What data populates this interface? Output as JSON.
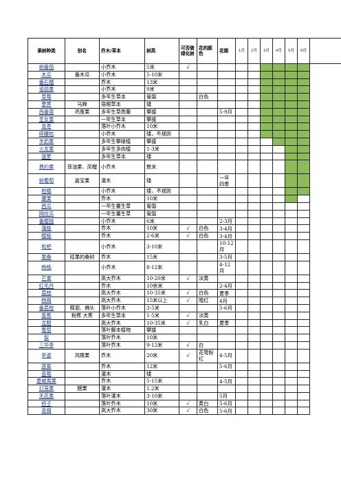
{
  "header": {
    "corner_label": "果",
    "col_fruit": "果树种类",
    "col_alias": "别名",
    "col_type": "乔木/草本",
    "col_height": "树高",
    "col_evergreen": "可否做绿化树",
    "col_flower_color": "花的颜色",
    "col_bloom": "花期",
    "months": [
      "1月",
      "2月",
      "3月",
      "4月",
      "5月",
      "6月"
    ]
  },
  "rows": [
    {
      "fruit": "树番茄",
      "alias": "",
      "type": "小乔木",
      "height": "5米",
      "green": "√",
      "color": "",
      "bloom": "",
      "g": [
        0,
        0,
        1,
        1,
        1,
        1
      ]
    },
    {
      "fruit": "木瓜",
      "alias": "番木瓜",
      "type": "小乔木",
      "height": "5-10米",
      "green": "",
      "color": "",
      "bloom": "",
      "g": [
        0,
        0,
        1,
        1,
        1,
        1
      ]
    },
    {
      "fruit": "番石榴",
      "alias": "",
      "type": "乔木",
      "height": "13米",
      "green": "",
      "color": "",
      "bloom": "",
      "g": [
        0,
        0,
        1,
        1,
        1,
        1
      ]
    },
    {
      "fruit": "诺丽果",
      "alias": "",
      "type": "小乔木",
      "height": "9米",
      "green": "",
      "color": "",
      "bloom": "",
      "g": [
        0,
        0,
        1,
        1,
        1,
        1
      ]
    },
    {
      "fruit": "草莓",
      "alias": "",
      "type": "多年生草本",
      "height": "匍匐",
      "green": "",
      "color": "白色",
      "bloom": "",
      "g": [
        0,
        0,
        1,
        1,
        1,
        1
      ]
    },
    {
      "fruit": "荸荠",
      "alias": "马蹄",
      "type": "宿根草本",
      "height": "矮",
      "green": "",
      "color": "",
      "bloom": "",
      "g": [
        0,
        0,
        1,
        1,
        1,
        1
      ]
    },
    {
      "fruit": "西番莲",
      "alias": "鸡蛋果",
      "type": "多年生草质藤",
      "height": "攀援",
      "green": "",
      "color": "",
      "bloom": "5-9月",
      "g": [
        0,
        0,
        1,
        1,
        1,
        1
      ]
    },
    {
      "fruit": "圣女果",
      "alias": "",
      "type": "一年生草本",
      "height": "攀援",
      "green": "",
      "color": "",
      "bloom": "",
      "g": [
        0,
        0,
        1,
        1,
        1,
        1
      ]
    },
    {
      "fruit": "青枣",
      "alias": "",
      "type": "落叶小乔木",
      "height": "10米",
      "green": "",
      "color": "",
      "bloom": "",
      "g": [
        0,
        0,
        1,
        1,
        1,
        1
      ]
    },
    {
      "fruit": "碎腰桔",
      "alias": "",
      "type": "小乔木",
      "height": "矮，不规则",
      "green": "",
      "color": "",
      "bloom": "",
      "g": [
        0,
        0,
        1,
        1,
        1,
        1
      ]
    },
    {
      "fruit": "羊奶果",
      "alias": "",
      "type": "多年生攀缘植",
      "height": "攀援",
      "green": "",
      "color": "",
      "bloom": "",
      "g": [
        0,
        0,
        0,
        1,
        1,
        1
      ]
    },
    {
      "fruit": "火龙果",
      "alias": "",
      "type": "多年生多肉植",
      "height": "1-3米",
      "green": "",
      "color": "",
      "bloom": "",
      "g": [
        0,
        0,
        0,
        0,
        1,
        1
      ]
    },
    {
      "fruit": "菠萝",
      "alias": "",
      "type": "多年生草本",
      "height": "矮",
      "green": "",
      "color": "",
      "bloom": "",
      "g": [
        0,
        0,
        0,
        0,
        1,
        1
      ]
    },
    {
      "fruit": "费约果",
      "alias": "菲油果、凤榴",
      "type": "小乔木",
      "height": "数米",
      "green": "",
      "color": "",
      "bloom": "",
      "g": [
        0,
        0,
        0,
        0,
        1,
        1
      ],
      "tall": 1
    },
    {
      "fruit": "树葡萄",
      "alias": "嘉宝果",
      "type": "灌木",
      "height": "矮",
      "green": "",
      "color": "",
      "bloom": "一年四季",
      "g": [
        0,
        0,
        0,
        0,
        1,
        1
      ],
      "tall": 1
    },
    {
      "fruit": "柑橘",
      "alias": "",
      "type": "小乔木",
      "height": "矮，不规则",
      "green": "",
      "color": "",
      "bloom": "",
      "g": [
        0,
        0,
        0,
        0,
        1,
        1
      ]
    },
    {
      "fruit": "腰果",
      "alias": "",
      "type": "乔木",
      "height": "10米",
      "green": "",
      "color": "",
      "bloom": "",
      "g": [
        0,
        0,
        0,
        0,
        1,
        0
      ]
    },
    {
      "fruit": "西瓜",
      "alias": "",
      "type": "一年生蔓生草",
      "height": "匍匐",
      "green": "",
      "color": "",
      "bloom": "",
      "g": [
        0,
        0,
        0,
        0,
        0,
        0
      ]
    },
    {
      "fruit": "网纹瓜",
      "alias": "",
      "type": "一年生蔓生草",
      "height": "匍匐",
      "green": "",
      "color": "",
      "bloom": "",
      "g": [
        0,
        0,
        0,
        0,
        0,
        0
      ]
    },
    {
      "fruit": "番樱桃",
      "alias": "",
      "type": "小乔木",
      "height": "6米",
      "green": "",
      "color": "",
      "bloom": "2-3月",
      "g": [
        0,
        0,
        0,
        0,
        0,
        0
      ]
    },
    {
      "fruit": "蒲桃",
      "alias": "",
      "type": "乔木",
      "height": "10米",
      "green": "√",
      "color": "白色",
      "bloom": "3-4月",
      "g": [
        0,
        0,
        0,
        0,
        0,
        0
      ]
    },
    {
      "fruit": "樱桃",
      "alias": "",
      "type": "乔木",
      "height": "2-6米",
      "green": "√",
      "color": "白色",
      "bloom": "3-4月",
      "g": [
        0,
        0,
        0,
        0,
        0,
        0
      ]
    },
    {
      "fruit": "枇杷",
      "alias": "",
      "type": "小乔木",
      "height": "3-10米",
      "green": "",
      "color": "",
      "bloom": "10-12月",
      "g": [
        0,
        0,
        0,
        0,
        0,
        0
      ],
      "tall": 1
    },
    {
      "fruit": "果桑",
      "alias": "结果的桑树",
      "type": "乔木",
      "height": "15米",
      "green": "",
      "color": "",
      "bloom": "3-5月",
      "g": [
        0,
        0,
        0,
        0,
        0,
        0
      ]
    },
    {
      "fruit": "杨桃",
      "alias": "",
      "type": "小乔木",
      "height": "8-12米",
      "green": "",
      "color": "",
      "bloom": "4-12月",
      "g": [
        0,
        0,
        0,
        0,
        0,
        0
      ],
      "tall": 1
    },
    {
      "fruit": "芒果",
      "alias": "",
      "type": "高大乔木",
      "height": "10-20米",
      "green": "√",
      "color": "淡黄",
      "bloom": "",
      "g": [
        0,
        0,
        0,
        0,
        0,
        0
      ]
    },
    {
      "fruit": "红毛丹",
      "alias": "",
      "type": "乔木",
      "height": "10余米",
      "green": "",
      "color": "",
      "bloom": "2-4月",
      "g": [
        0,
        0,
        0,
        0,
        0,
        0
      ]
    },
    {
      "fruit": "荔枝",
      "alias": "",
      "type": "高大乔木",
      "height": "10-35米",
      "green": "√",
      "color": "白色",
      "bloom": "夏季",
      "g": [
        0,
        0,
        0,
        0,
        0,
        0
      ]
    },
    {
      "fruit": "杨梅",
      "alias": "",
      "type": "高大乔木",
      "height": "15米以上",
      "green": "√",
      "color": "暗红",
      "bloom": "4月",
      "g": [
        0,
        0,
        0,
        0,
        0,
        0
      ]
    },
    {
      "fruit": "番荔枝",
      "alias": "释迦、佛头",
      "type": "落叶小乔木",
      "height": "3-5米",
      "green": "",
      "color": "",
      "bloom": "5-6月",
      "g": [
        0,
        0,
        0,
        0,
        0,
        0
      ]
    },
    {
      "fruit": "香蕉",
      "alias": "粉蕉 大蕉",
      "type": "多年生草本",
      "height": "1-5米",
      "green": "√",
      "color": "淡黄",
      "bloom": "",
      "g": [
        0,
        0,
        0,
        0,
        0,
        0
      ]
    },
    {
      "fruit": "龙眼",
      "alias": "",
      "type": "高大乔木",
      "height": "10-35米",
      "green": "√",
      "color": "乳白",
      "bloom": "夏季",
      "g": [
        0,
        0,
        0,
        0,
        0,
        0
      ]
    },
    {
      "fruit": "葡萄",
      "alias": "",
      "type": "落叶藤本植物",
      "height": "攀援",
      "green": "",
      "color": "",
      "bloom": "",
      "g": [
        0,
        0,
        0,
        0,
        0,
        0
      ]
    },
    {
      "fruit": "梨",
      "alias": "",
      "type": "落叶乔木",
      "height": "10米",
      "green": "",
      "color": "",
      "bloom": "",
      "g": [
        0,
        0,
        0,
        0,
        0,
        0
      ]
    },
    {
      "fruit": "三华李",
      "alias": "",
      "type": "落叶乔木",
      "height": "9-12米",
      "green": "√",
      "color": "白",
      "bloom": "",
      "g": [
        0,
        0,
        0,
        0,
        0,
        0
      ]
    },
    {
      "fruit": "莲雾",
      "alias": "",
      "type": "乔木",
      "height": "12米",
      "green": "",
      "color": "",
      "bloom": "5-6月",
      "g": [
        0,
        0,
        0,
        0,
        0,
        0
      ]
    },
    {
      "fruit": "蓝莓",
      "alias": "",
      "type": "灌木",
      "height": "矮",
      "green": "",
      "color": "",
      "bloom": "",
      "g": [
        0,
        0,
        0,
        0,
        0,
        0
      ]
    },
    {
      "fruit": "夏威夷果",
      "alias": "",
      "type": "乔木",
      "height": "5-15米",
      "green": "",
      "color": "",
      "bloom": "4-5月",
      "g": [
        0,
        0,
        0,
        0,
        0,
        0
      ]
    },
    {
      "fruit": "灯笼果",
      "alias": "醋栗",
      "type": "灌木",
      "height": "1.2米",
      "green": "",
      "color": "",
      "bloom": "",
      "g": [
        0,
        0,
        0,
        0,
        0,
        0
      ]
    },
    {
      "fruit": "无花果",
      "alias": "",
      "type": "落叶灌木",
      "height": "3-10米",
      "green": "",
      "color": "",
      "bloom": "5月",
      "g": [
        0,
        0,
        0,
        0,
        0,
        0
      ]
    },
    {
      "fruit": "柿子",
      "alias": "",
      "type": "落叶乔木",
      "height": "10米",
      "green": "√",
      "color": "黄白",
      "bloom": "5-6月",
      "g": [
        0,
        0,
        0,
        0,
        0,
        0
      ]
    },
    {
      "fruit": "青梅",
      "alias": "",
      "type": "高大乔木",
      "height": "30米",
      "green": "√",
      "color": "白色",
      "bloom": "5-6月",
      "g": [
        0,
        0,
        0,
        0,
        0,
        0
      ]
    }
  ],
  "special": {
    "pouxian_alias": "风眼果",
    "pouxian_color": "花萼粉红",
    "pouxian_bloom": "4-5月"
  }
}
